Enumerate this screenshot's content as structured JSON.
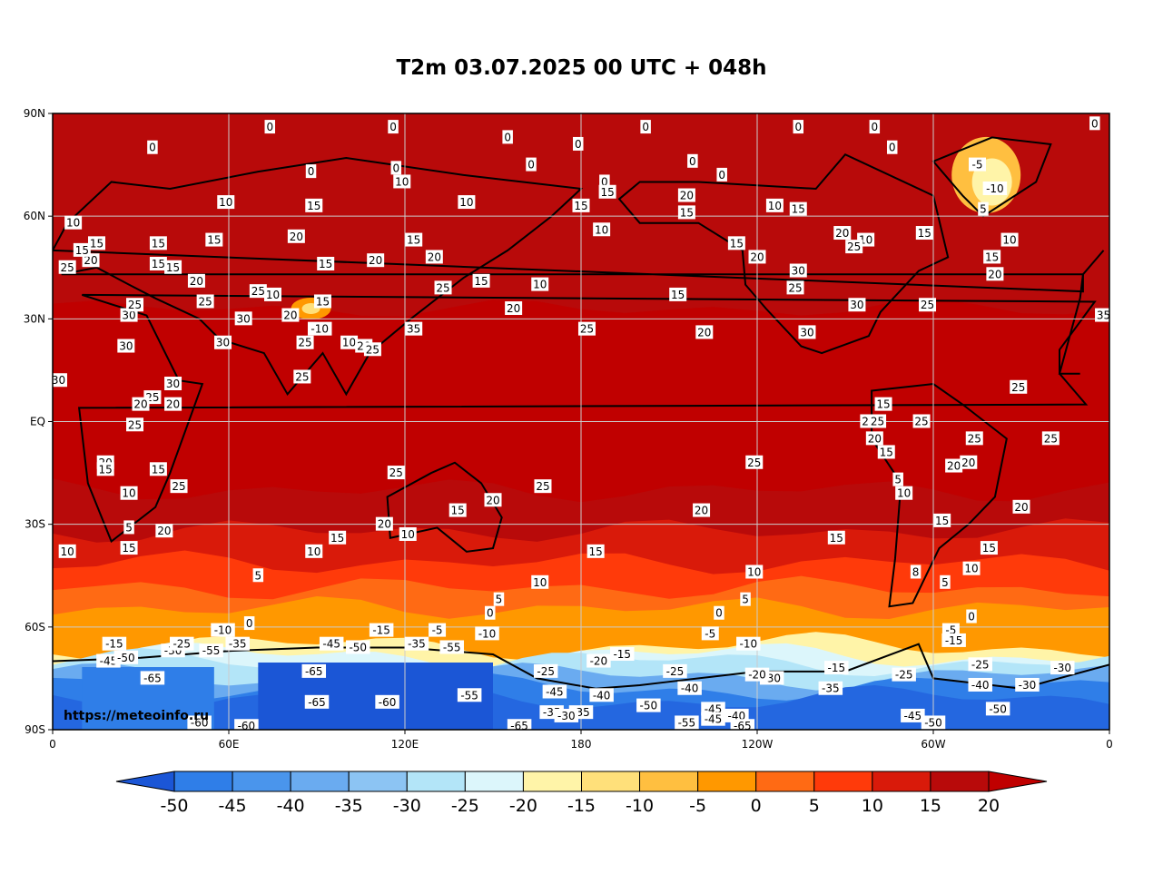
{
  "title": "T2m 03.07.2025 00 UTC + 048h",
  "watermark": "https://meteoinfo.ru",
  "map": {
    "y_ticks": [
      "90N",
      "60N",
      "30N",
      "EQ",
      "30S",
      "60S",
      "90S"
    ],
    "x_ticks": [
      "0",
      "60E",
      "120E",
      "180",
      "120W",
      "60W",
      "0"
    ]
  },
  "colorbar": {
    "levels": [
      "-50",
      "-45",
      "-40",
      "-35",
      "-30",
      "-25",
      "-20",
      "-15",
      "-10",
      "-5",
      "0",
      "5",
      "10",
      "15",
      "20"
    ],
    "colors": [
      "#2467e0",
      "#2f7ee8",
      "#4a95ec",
      "#6aabf0",
      "#8cc4f3",
      "#b3e5f8",
      "#dcf6fb",
      "#fff4a8",
      "#ffe07a",
      "#ffbf40",
      "#ff9800",
      "#ff6a14",
      "#ff3a0a",
      "#d91a0a",
      "#b80a0a"
    ],
    "under_color": "#1b56d6",
    "over_color": "#c00000"
  },
  "contour_labels": [
    {
      "t": "0",
      "lon": 74,
      "lat": 86
    },
    {
      "t": "0",
      "lon": 155,
      "lat": 83
    },
    {
      "t": "0",
      "lon": 179,
      "lat": 81
    },
    {
      "t": "0",
      "lon": 116,
      "lat": 86
    },
    {
      "t": "0",
      "lon": 202,
      "lat": 86
    },
    {
      "t": "0",
      "lon": 254,
      "lat": 86
    },
    {
      "t": "0",
      "lon": 34,
      "lat": 80
    },
    {
      "t": "0",
      "lon": 218,
      "lat": 76
    },
    {
      "t": "0",
      "lon": 280,
      "lat": 86
    },
    {
      "t": "0",
      "lon": 286,
      "lat": 80
    },
    {
      "t": "0",
      "lon": 355,
      "lat": 87
    },
    {
      "t": "0",
      "lon": 228,
      "lat": 72
    },
    {
      "t": "0",
      "lon": 88,
      "lat": 73
    },
    {
      "t": "0",
      "lon": 117,
      "lat": 74
    },
    {
      "t": "0",
      "lon": 163,
      "lat": 75
    },
    {
      "t": "0",
      "lon": 188,
      "lat": 70
    },
    {
      "t": "-5",
      "lon": 315,
      "lat": 75
    },
    {
      "t": "-10",
      "lon": 321,
      "lat": 68
    },
    {
      "t": "5",
      "lon": 317,
      "lat": 62
    },
    {
      "t": "10",
      "lon": 119,
      "lat": 70
    },
    {
      "t": "10",
      "lon": 59,
      "lat": 64
    },
    {
      "t": "15",
      "lon": 89,
      "lat": 63
    },
    {
      "t": "10",
      "lon": 141,
      "lat": 64
    },
    {
      "t": "15",
      "lon": 189,
      "lat": 67
    },
    {
      "t": "20",
      "lon": 216,
      "lat": 66
    },
    {
      "t": "15",
      "lon": 216,
      "lat": 61
    },
    {
      "t": "10",
      "lon": 246,
      "lat": 63
    },
    {
      "t": "15",
      "lon": 254,
      "lat": 62
    },
    {
      "t": "15",
      "lon": 180,
      "lat": 63
    },
    {
      "t": "10",
      "lon": 187,
      "lat": 56
    },
    {
      "t": "15",
      "lon": 297,
      "lat": 55
    },
    {
      "t": "20",
      "lon": 269,
      "lat": 55
    },
    {
      "t": "10",
      "lon": 277,
      "lat": 53
    },
    {
      "t": "25",
      "lon": 273,
      "lat": 51
    },
    {
      "t": "15",
      "lon": 233,
      "lat": 52
    },
    {
      "t": "20",
      "lon": 240,
      "lat": 48
    },
    {
      "t": "30",
      "lon": 254,
      "lat": 44
    },
    {
      "t": "25",
      "lon": 253,
      "lat": 39
    },
    {
      "t": "30",
      "lon": 274,
      "lat": 34
    },
    {
      "t": "25",
      "lon": 298,
      "lat": 34
    },
    {
      "t": "30",
      "lon": 257,
      "lat": 26
    },
    {
      "t": "20",
      "lon": 222,
      "lat": 26
    },
    {
      "t": "15",
      "lon": 213,
      "lat": 37
    },
    {
      "t": "25",
      "lon": 182,
      "lat": 27
    },
    {
      "t": "20",
      "lon": 157,
      "lat": 33
    },
    {
      "t": "10",
      "lon": 166,
      "lat": 40
    },
    {
      "t": "15",
      "lon": 146,
      "lat": 41
    },
    {
      "t": "25",
      "lon": 133,
      "lat": 39
    },
    {
      "t": "20",
      "lon": 110,
      "lat": 47
    },
    {
      "t": "20",
      "lon": 130,
      "lat": 48
    },
    {
      "t": "15",
      "lon": 123,
      "lat": 53
    },
    {
      "t": "20",
      "lon": 83,
      "lat": 54
    },
    {
      "t": "15",
      "lon": 55,
      "lat": 53
    },
    {
      "t": "15",
      "lon": 36,
      "lat": 46
    },
    {
      "t": "20",
      "lon": 49,
      "lat": 41
    },
    {
      "t": "25",
      "lon": 70,
      "lat": 38
    },
    {
      "t": "10",
      "lon": 75,
      "lat": 37
    },
    {
      "t": "15",
      "lon": 93,
      "lat": 46
    },
    {
      "t": "15",
      "lon": 92,
      "lat": 35
    },
    {
      "t": "20",
      "lon": 81,
      "lat": 31
    },
    {
      "t": "30",
      "lon": 65,
      "lat": 30
    },
    {
      "t": "-10",
      "lon": 91,
      "lat": 27
    },
    {
      "t": "10",
      "lon": 101,
      "lat": 23
    },
    {
      "t": "20",
      "lon": 106,
      "lat": 22
    },
    {
      "t": "25",
      "lon": 109,
      "lat": 21
    },
    {
      "t": "25",
      "lon": 86,
      "lat": 23
    },
    {
      "t": "30",
      "lon": 58,
      "lat": 23
    },
    {
      "t": "35",
      "lon": 123,
      "lat": 27
    },
    {
      "t": "25",
      "lon": 85,
      "lat": 13
    },
    {
      "t": "30",
      "lon": 26,
      "lat": 31
    },
    {
      "t": "25",
      "lon": 28,
      "lat": 34
    },
    {
      "t": "30",
      "lon": 25,
      "lat": 22
    },
    {
      "t": "30",
      "lon": 2,
      "lat": 12
    },
    {
      "t": "15",
      "lon": 41,
      "lat": 45
    },
    {
      "t": "20",
      "lon": 13,
      "lat": 47
    },
    {
      "t": "25",
      "lon": 5,
      "lat": 45
    },
    {
      "t": "15",
      "lon": 10,
      "lat": 50
    },
    {
      "t": "15",
      "lon": 15,
      "lat": 52
    },
    {
      "t": "10",
      "lon": 7,
      "lat": 58
    },
    {
      "t": "15",
      "lon": 36,
      "lat": 52
    },
    {
      "t": "25",
      "lon": 52,
      "lat": 35
    },
    {
      "t": "30",
      "lon": 41,
      "lat": 11
    },
    {
      "t": "25",
      "lon": 34,
      "lat": 7
    },
    {
      "t": "20",
      "lon": 30,
      "lat": 5
    },
    {
      "t": "20",
      "lon": 41,
      "lat": 5
    },
    {
      "t": "25",
      "lon": 28,
      "lat": -1
    },
    {
      "t": "20",
      "lon": 18,
      "lat": -12
    },
    {
      "t": "15",
      "lon": 18,
      "lat": -14
    },
    {
      "t": "15",
      "lon": 36,
      "lat": -14
    },
    {
      "t": "25",
      "lon": 43,
      "lat": -19
    },
    {
      "t": "10",
      "lon": 26,
      "lat": -21
    },
    {
      "t": "5",
      "lon": 26,
      "lat": -31
    },
    {
      "t": "15",
      "lon": 26,
      "lat": -37
    },
    {
      "t": "20",
      "lon": 38,
      "lat": -32
    },
    {
      "t": "10",
      "lon": 5,
      "lat": -38
    },
    {
      "t": "15",
      "lon": 97,
      "lat": -34
    },
    {
      "t": "10",
      "lon": 89,
      "lat": -38
    },
    {
      "t": "5",
      "lon": 70,
      "lat": -45
    },
    {
      "t": "0",
      "lon": 67,
      "lat": -59
    },
    {
      "t": "25",
      "lon": 117,
      "lat": -15
    },
    {
      "t": "20",
      "lon": 113,
      "lat": -30
    },
    {
      "t": "10",
      "lon": 121,
      "lat": -33
    },
    {
      "t": "15",
      "lon": 138,
      "lat": -26
    },
    {
      "t": "20",
      "lon": 150,
      "lat": -23
    },
    {
      "t": "25",
      "lon": 167,
      "lat": -19
    },
    {
      "t": "15",
      "lon": 185,
      "lat": -38
    },
    {
      "t": "10",
      "lon": 166,
      "lat": -47
    },
    {
      "t": "5",
      "lon": 152,
      "lat": -52
    },
    {
      "t": "0",
      "lon": 149,
      "lat": -56
    },
    {
      "t": "20",
      "lon": 221,
      "lat": -26
    },
    {
      "t": "25",
      "lon": 239,
      "lat": -12
    },
    {
      "t": "10",
      "lon": 239,
      "lat": -44
    },
    {
      "t": "5",
      "lon": 236,
      "lat": -52
    },
    {
      "t": "0",
      "lon": 227,
      "lat": -56
    },
    {
      "t": "15",
      "lon": 267,
      "lat": -34
    },
    {
      "t": "15",
      "lon": 284,
      "lat": -9
    },
    {
      "t": "20",
      "lon": 280,
      "lat": -5
    },
    {
      "t": "25",
      "lon": 278,
      "lat": 0
    },
    {
      "t": "25",
      "lon": 296,
      "lat": 0
    },
    {
      "t": "25",
      "lon": 314,
      "lat": -5
    },
    {
      "t": "20",
      "lon": 307,
      "lat": -13
    },
    {
      "t": "20",
      "lon": 312,
      "lat": -12
    },
    {
      "t": "10",
      "lon": 290,
      "lat": -21
    },
    {
      "t": "5",
      "lon": 288,
      "lat": -17
    },
    {
      "t": "15",
      "lon": 303,
      "lat": -29
    },
    {
      "t": "8",
      "lon": 294,
      "lat": -44
    },
    {
      "t": "5",
      "lon": 304,
      "lat": -47
    },
    {
      "t": "10",
      "lon": 313,
      "lat": -43
    },
    {
      "t": "15",
      "lon": 319,
      "lat": -37
    },
    {
      "t": "20",
      "lon": 330,
      "lat": -25
    },
    {
      "t": "25",
      "lon": 340,
      "lat": -5
    },
    {
      "t": "25",
      "lon": 329,
      "lat": 10
    },
    {
      "t": "15",
      "lon": 283,
      "lat": 5
    },
    {
      "t": "25",
      "lon": 281,
      "lat": 0
    },
    {
      "t": "35",
      "lon": 358,
      "lat": 31
    },
    {
      "t": "10",
      "lon": 326,
      "lat": 53
    },
    {
      "t": "15",
      "lon": 320,
      "lat": 48
    },
    {
      "t": "20",
      "lon": 321,
      "lat": 43
    },
    {
      "t": "0",
      "lon": 313,
      "lat": -57
    },
    {
      "t": "-5",
      "lon": 306,
      "lat": -61
    },
    {
      "t": "-15",
      "lon": 307,
      "lat": -64
    },
    {
      "t": "-25",
      "lon": 316,
      "lat": -71
    },
    {
      "t": "-40",
      "lon": 316,
      "lat": -77
    },
    {
      "t": "-30",
      "lon": 332,
      "lat": -77
    },
    {
      "t": "-30",
      "lon": 344,
      "lat": -72
    },
    {
      "t": "-50",
      "lon": 322,
      "lat": -84
    },
    {
      "t": "-45",
      "lon": 293,
      "lat": -86
    },
    {
      "t": "-50",
      "lon": 300,
      "lat": -88
    },
    {
      "t": "-35",
      "lon": 265,
      "lat": -78
    },
    {
      "t": "-25",
      "lon": 290,
      "lat": -74
    },
    {
      "t": "-15",
      "lon": 267,
      "lat": -72
    },
    {
      "t": "-30",
      "lon": 245,
      "lat": -75
    },
    {
      "t": "-20",
      "lon": 240,
      "lat": -74
    },
    {
      "t": "-10",
      "lon": 237,
      "lat": -65
    },
    {
      "t": "-5",
      "lon": 224,
      "lat": -62
    },
    {
      "t": "-15",
      "lon": 194,
      "lat": -68
    },
    {
      "t": "-25",
      "lon": 212,
      "lat": -73
    },
    {
      "t": "-40",
      "lon": 217,
      "lat": -78
    },
    {
      "t": "-50",
      "lon": 203,
      "lat": -83
    },
    {
      "t": "-45",
      "lon": 225,
      "lat": -84
    },
    {
      "t": "-40",
      "lon": 233,
      "lat": -86
    },
    {
      "t": "-45",
      "lon": 225,
      "lat": -87
    },
    {
      "t": "-55",
      "lon": 216,
      "lat": -88
    },
    {
      "t": "-65",
      "lon": 235,
      "lat": -89
    },
    {
      "t": "-40",
      "lon": 187,
      "lat": -80
    },
    {
      "t": "-20",
      "lon": 186,
      "lat": -70
    },
    {
      "t": "-45",
      "lon": 171,
      "lat": -79
    },
    {
      "t": "-35",
      "lon": 170,
      "lat": -85
    },
    {
      "t": "-35",
      "lon": 180,
      "lat": -85
    },
    {
      "t": "-30",
      "lon": 175,
      "lat": -86
    },
    {
      "t": "-25",
      "lon": 168,
      "lat": -73
    },
    {
      "t": "-65",
      "lon": 159,
      "lat": -89
    },
    {
      "t": "-55",
      "lon": 142,
      "lat": -80
    },
    {
      "t": "-60",
      "lon": 114,
      "lat": -82
    },
    {
      "t": "-10",
      "lon": 148,
      "lat": -62
    },
    {
      "t": "-5",
      "lon": 131,
      "lat": -61
    },
    {
      "t": "-15",
      "lon": 112,
      "lat": -61
    },
    {
      "t": "-35",
      "lon": 124,
      "lat": -65
    },
    {
      "t": "-55",
      "lon": 136,
      "lat": -66
    },
    {
      "t": "-50",
      "lon": 104,
      "lat": -66
    },
    {
      "t": "-45",
      "lon": 95,
      "lat": -65
    },
    {
      "t": "-65",
      "lon": 89,
      "lat": -73
    },
    {
      "t": "-65",
      "lon": 90,
      "lat": -82
    },
    {
      "t": "-10",
      "lon": 58,
      "lat": -61
    },
    {
      "t": "-35",
      "lon": 63,
      "lat": -65
    },
    {
      "t": "-55",
      "lon": 54,
      "lat": -67
    },
    {
      "t": "-30",
      "lon": 41,
      "lat": -67
    },
    {
      "t": "-15",
      "lon": 21,
      "lat": -65
    },
    {
      "t": "-45",
      "lon": 19,
      "lat": -70
    },
    {
      "t": "-50",
      "lon": 25,
      "lat": -69
    },
    {
      "t": "-65",
      "lon": 34,
      "lat": -75
    },
    {
      "t": "-60",
      "lon": 50,
      "lat": -88
    },
    {
      "t": "-60",
      "lon": 66,
      "lat": -89
    },
    {
      "t": "-25",
      "lon": 44,
      "lat": -65
    }
  ]
}
